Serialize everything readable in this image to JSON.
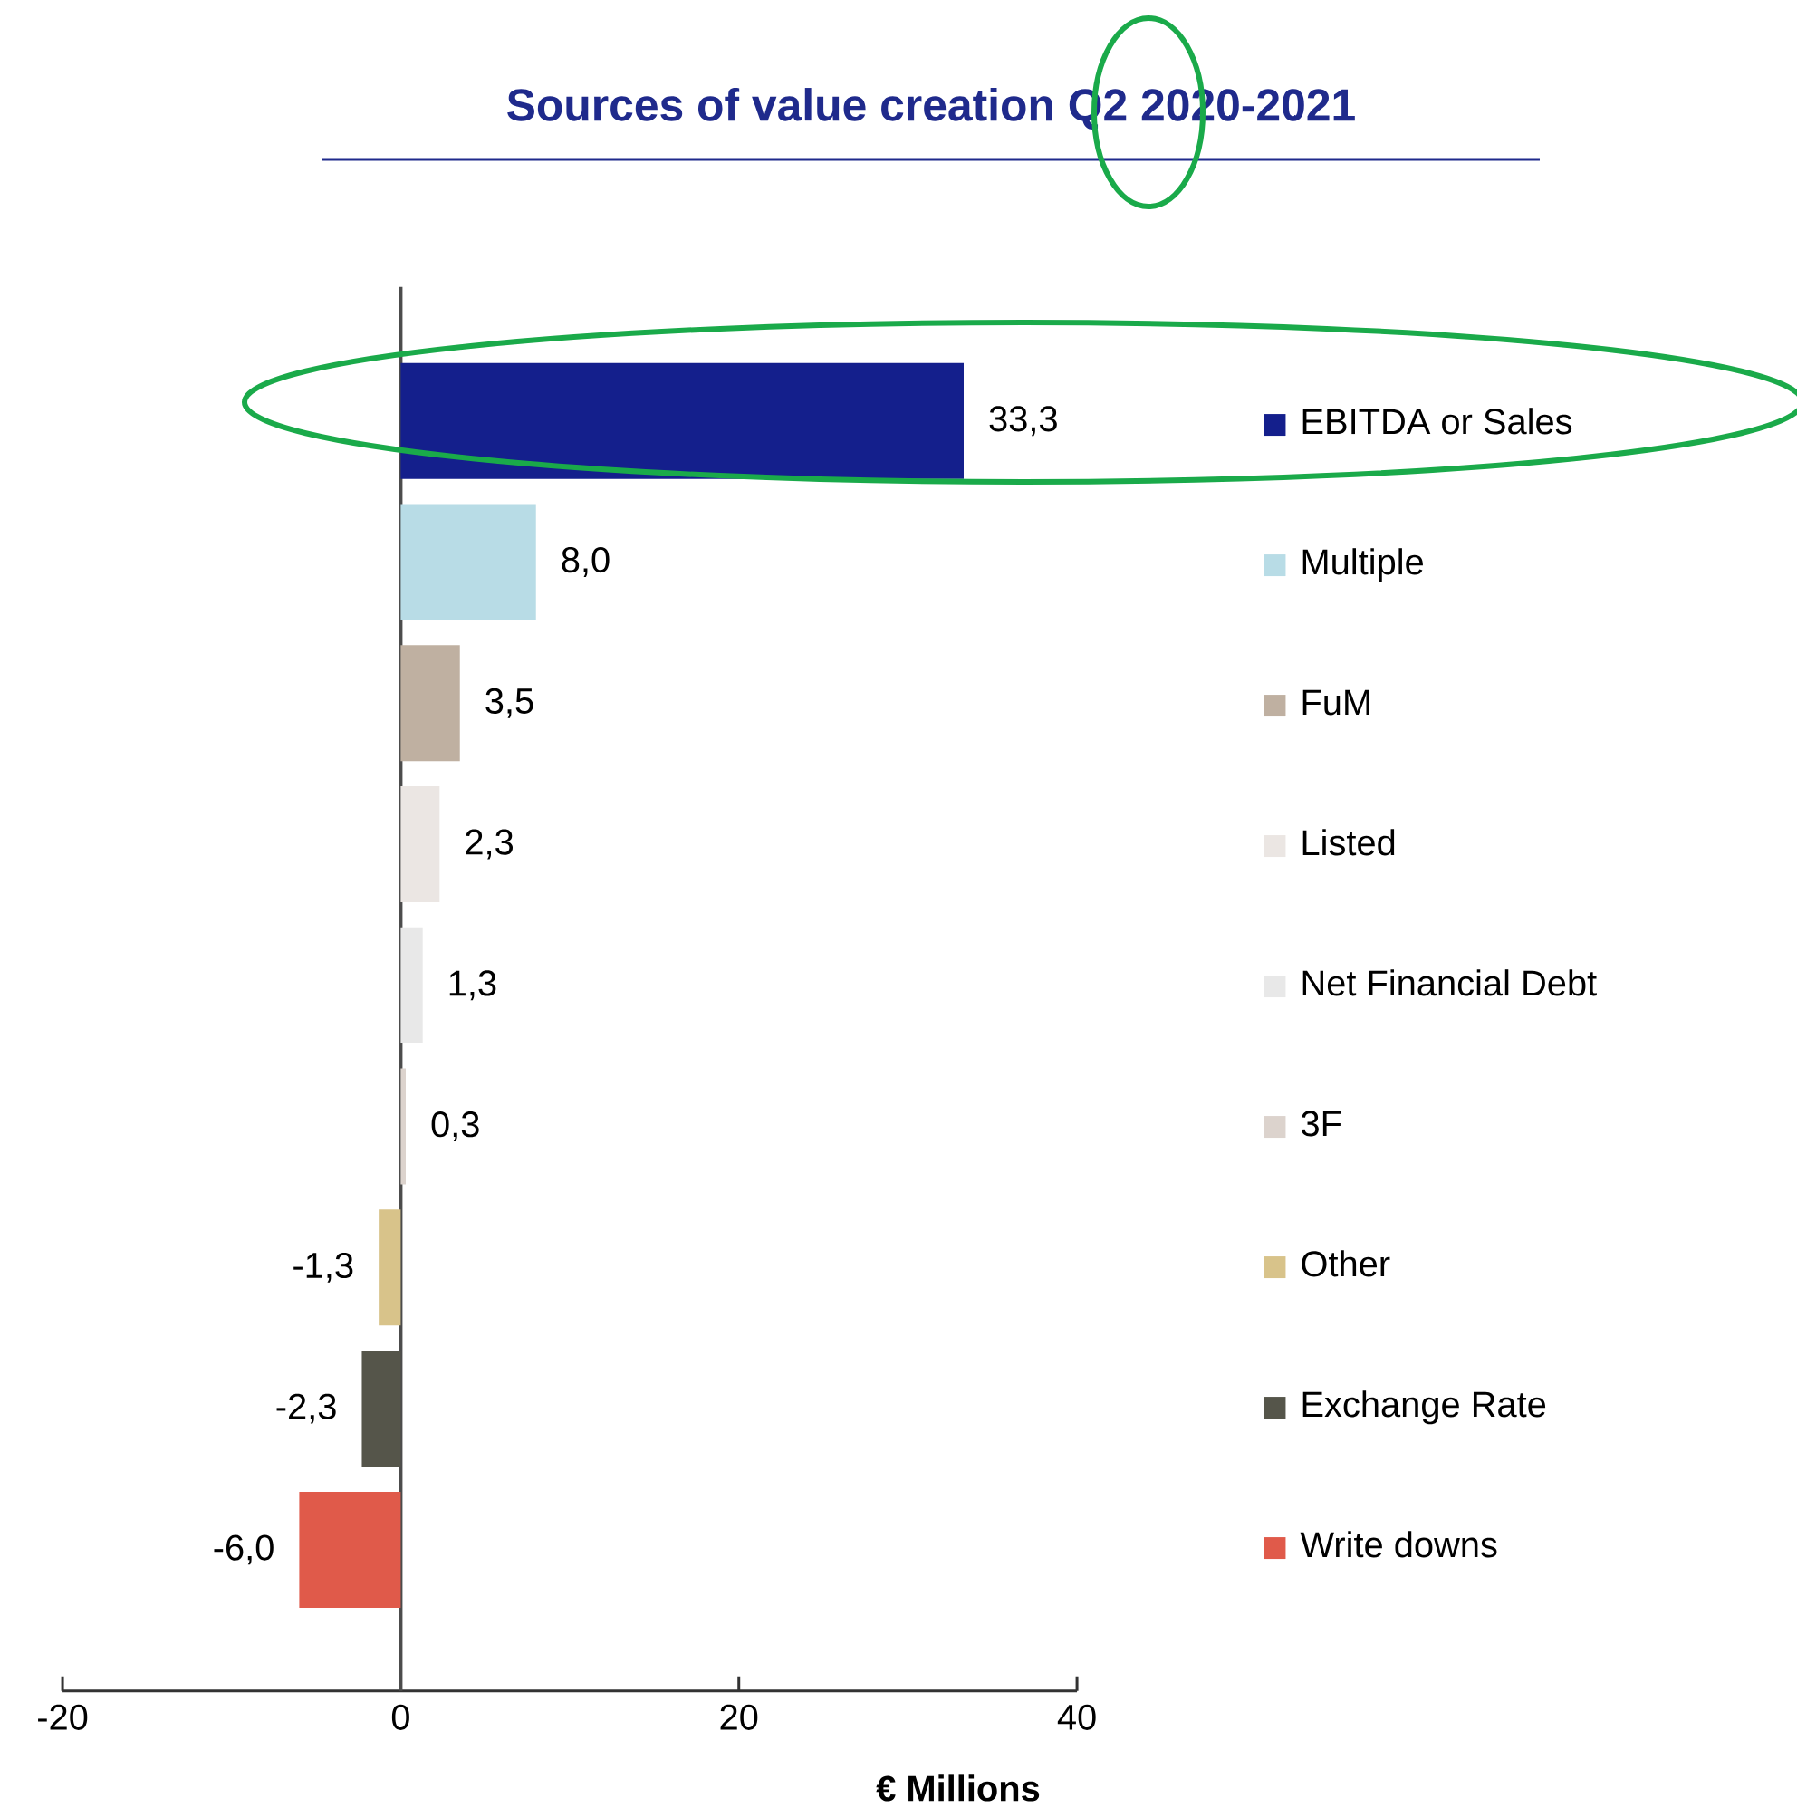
{
  "chart_data": {
    "type": "bar",
    "orientation": "horizontal",
    "stacked": true,
    "title": "Sources of value creation Q2 2020-2021",
    "xlabel": "€ Millions",
    "categories": [
      null,
      null,
      null,
      null,
      null,
      null,
      null,
      null,
      null
    ],
    "series": [
      {
        "name": "EBITDA or Sales",
        "color": "#141f8c",
        "values": [
          33.3,
          null,
          null,
          null,
          null,
          null,
          null,
          null,
          null
        ],
        "value_labels": [
          "33,3",
          null,
          null,
          null,
          null,
          null,
          null,
          null,
          null
        ]
      },
      {
        "name": "Multiple",
        "color": "#b8dce6",
        "values": [
          null,
          8.0,
          null,
          null,
          null,
          null,
          null,
          null,
          null
        ],
        "value_labels": [
          null,
          "8,0",
          null,
          null,
          null,
          null,
          null,
          null,
          null
        ]
      },
      {
        "name": "FuM",
        "color": "#bfb0a1",
        "values": [
          null,
          null,
          3.5,
          null,
          null,
          null,
          null,
          null,
          null
        ],
        "value_labels": [
          null,
          null,
          "3,5",
          null,
          null,
          null,
          null,
          null,
          null
        ]
      },
      {
        "name": "Listed",
        "color": "#ebe6e3",
        "values": [
          null,
          null,
          null,
          2.3,
          null,
          null,
          null,
          null,
          null
        ],
        "value_labels": [
          null,
          null,
          null,
          "2,3",
          null,
          null,
          null,
          null,
          null
        ]
      },
      {
        "name": "Net Financial Debt",
        "color": "#e8e8e8",
        "values": [
          null,
          null,
          null,
          null,
          1.3,
          null,
          null,
          null,
          null
        ],
        "value_labels": [
          null,
          null,
          null,
          null,
          "1,3",
          null,
          null,
          null,
          null
        ]
      },
      {
        "name": "3F",
        "color": "#dcd3cd",
        "values": [
          null,
          null,
          null,
          null,
          null,
          0.3,
          null,
          null,
          null
        ],
        "value_labels": [
          null,
          null,
          null,
          null,
          null,
          "0,3",
          null,
          null,
          null
        ]
      },
      {
        "name": "Other",
        "color": "#d8c38a",
        "values": [
          null,
          null,
          null,
          null,
          null,
          null,
          -1.3,
          null,
          null
        ],
        "value_labels": [
          null,
          null,
          null,
          null,
          null,
          null,
          "-1,3",
          null,
          null
        ]
      },
      {
        "name": "Exchange Rate",
        "color": "#55554a",
        "values": [
          null,
          null,
          null,
          null,
          null,
          null,
          null,
          -2.3,
          null
        ],
        "value_labels": [
          null,
          null,
          null,
          null,
          null,
          null,
          null,
          "-2,3",
          null
        ]
      },
      {
        "name": "Write downs",
        "color": "#e05a4a",
        "values": [
          null,
          null,
          null,
          null,
          null,
          null,
          null,
          null,
          -6.0
        ],
        "value_labels": [
          null,
          null,
          null,
          null,
          null,
          null,
          null,
          null,
          "-6,0"
        ]
      }
    ],
    "xlim": [
      -20,
      40
    ],
    "xticks": [
      -20,
      0,
      20,
      40
    ],
    "tick_labels": "x",
    "legend": "right"
  }
}
